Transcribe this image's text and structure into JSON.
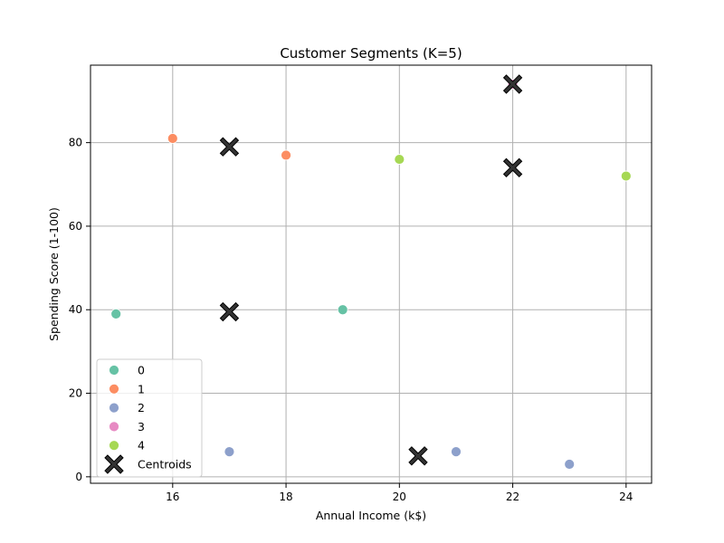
{
  "chart_data": {
    "type": "scatter",
    "title": "Customer Segments (K=5)",
    "xlabel": "Annual Income (k$)",
    "ylabel": "Spending Score (1-100)",
    "xlim": [
      14.55,
      24.45
    ],
    "ylim": [
      -1.55,
      98.55
    ],
    "xticks": [
      16,
      18,
      20,
      22,
      24
    ],
    "yticks": [
      0,
      20,
      40,
      60,
      80
    ],
    "grid": true,
    "legend_position": "lower-left",
    "series": [
      {
        "name": "0",
        "color": "#66c2a5",
        "points": [
          [
            15,
            39
          ],
          [
            19,
            40
          ]
        ]
      },
      {
        "name": "1",
        "color": "#fc8d62",
        "points": [
          [
            16,
            81
          ],
          [
            18,
            77
          ]
        ]
      },
      {
        "name": "2",
        "color": "#8da0cb",
        "points": [
          [
            17,
            6
          ],
          [
            21,
            6
          ],
          [
            23,
            3
          ]
        ]
      },
      {
        "name": "3",
        "color": "#e78ac3",
        "points": [
          [
            22,
            94
          ]
        ]
      },
      {
        "name": "4",
        "color": "#a6d854",
        "points": [
          [
            20,
            76
          ],
          [
            24,
            72
          ]
        ]
      }
    ],
    "centroids": {
      "name": "Centroids",
      "color": "#333333",
      "points": [
        [
          17,
          79
        ],
        [
          22,
          94
        ],
        [
          22,
          74
        ],
        [
          17,
          39.5
        ],
        [
          20.33,
          5
        ]
      ]
    }
  }
}
